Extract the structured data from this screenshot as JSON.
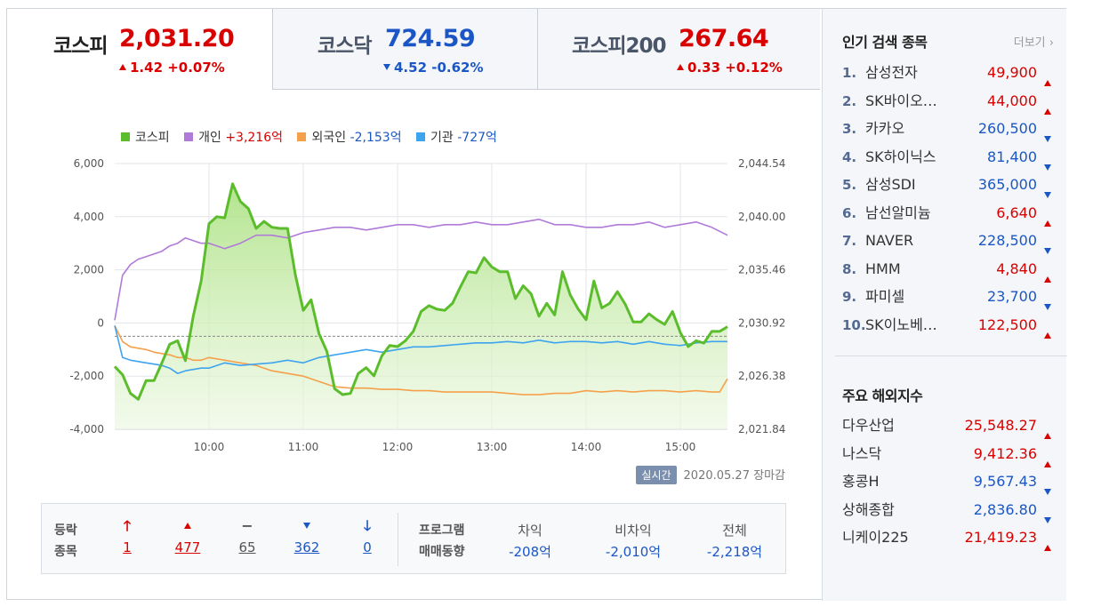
{
  "tabs": [
    {
      "name": "코스피",
      "value": "2,031.20",
      "change": "1.42 +0.07%",
      "dir": "up"
    },
    {
      "name": "코스닥",
      "value": "724.59",
      "change": "4.52 -0.62%",
      "dir": "down"
    },
    {
      "name": "코스피200",
      "value": "267.64",
      "change": "0.33 +0.12%",
      "dir": "up"
    }
  ],
  "legend": [
    {
      "label": "코스피",
      "value": "",
      "color": "#5bbd2b"
    },
    {
      "label": "개인",
      "value": "+3,216억",
      "color": "#b07ad9",
      "dir": "up"
    },
    {
      "label": "외국인",
      "value": "-2,153억",
      "color": "#f5a04a",
      "dir": "down"
    },
    {
      "label": "기관",
      "value": "-727억",
      "color": "#3ea4ef",
      "dir": "down"
    }
  ],
  "chart_data": {
    "type": "line",
    "x_ticks": [
      "10:00",
      "11:00",
      "12:00",
      "13:00",
      "14:00",
      "15:00"
    ],
    "y_left_ticks": [
      "6,000",
      "4,000",
      "2,000",
      "0",
      "-2,000",
      "-4,000"
    ],
    "y_left_range": [
      -4000,
      6000
    ],
    "y_right_ticks": [
      "2,044.54",
      "2,040.00",
      "2,035.46",
      "2,030.92",
      "2,026.38",
      "2,021.84"
    ],
    "y_right_range": [
      2021.84,
      2044.54
    ],
    "reference_line": 2029.78,
    "series": [
      {
        "name": "코스피",
        "axis": "right",
        "color": "#5bbd2b",
        "fill": true,
        "t": [
          "09:00",
          "09:05",
          "09:10",
          "09:15",
          "09:20",
          "09:25",
          "09:30",
          "09:35",
          "09:40",
          "09:45",
          "09:50",
          "09:55",
          "10:00",
          "10:05",
          "10:10",
          "10:15",
          "10:20",
          "10:25",
          "10:30",
          "10:35",
          "10:40",
          "10:45",
          "10:50",
          "10:55",
          "11:00",
          "11:05",
          "11:10",
          "11:15",
          "11:20",
          "11:25",
          "11:30",
          "11:35",
          "11:40",
          "11:45",
          "11:50",
          "11:55",
          "12:00",
          "12:05",
          "12:10",
          "12:15",
          "12:20",
          "12:25",
          "12:30",
          "12:35",
          "12:40",
          "12:45",
          "12:50",
          "12:55",
          "13:00",
          "13:05",
          "13:10",
          "13:15",
          "13:20",
          "13:25",
          "13:30",
          "13:35",
          "13:40",
          "13:45",
          "13:50",
          "13:55",
          "14:00",
          "14:05",
          "14:10",
          "14:15",
          "14:20",
          "14:25",
          "14:30",
          "14:35",
          "14:40",
          "14:45",
          "14:50",
          "14:55",
          "15:00",
          "15:05",
          "15:10",
          "15:15",
          "15:20",
          "15:25",
          "15:30"
        ],
        "y": [
          2027.2,
          2026.5,
          2024.9,
          2024.4,
          2026.0,
          2026.0,
          2027.5,
          2029.1,
          2029.4,
          2027.7,
          2031.5,
          2034.5,
          2039.4,
          2040.0,
          2039.9,
          2042.8,
          2041.3,
          2040.7,
          2039.0,
          2039.6,
          2039.1,
          2039.0,
          2039.0,
          2035.0,
          2032.0,
          2032.9,
          2030.0,
          2028.5,
          2025.3,
          2024.8,
          2024.9,
          2026.6,
          2027.1,
          2026.4,
          2028.1,
          2029.0,
          2028.9,
          2029.4,
          2030.2,
          2031.9,
          2032.4,
          2032.1,
          2032.0,
          2032.6,
          2034.0,
          2035.3,
          2035.2,
          2036.5,
          2035.7,
          2035.3,
          2035.3,
          2033.0,
          2034.1,
          2033.4,
          2031.5,
          2032.6,
          2031.6,
          2035.3,
          2033.3,
          2032.1,
          2031.2,
          2034.5,
          2032.2,
          2032.6,
          2033.6,
          2032.5,
          2031.0,
          2031.0,
          2031.7,
          2031.2,
          2030.8,
          2031.9,
          2030.1,
          2028.9,
          2029.4,
          2029.2,
          2030.2,
          2030.2,
          2030.6
        ]
      },
      {
        "name": "개인",
        "axis": "left",
        "color": "#b07ad9",
        "t": [
          "09:00",
          "09:05",
          "09:10",
          "09:15",
          "09:20",
          "09:25",
          "09:30",
          "09:35",
          "09:40",
          "09:45",
          "09:50",
          "09:55",
          "10:00",
          "10:10",
          "10:20",
          "10:30",
          "10:40",
          "10:50",
          "11:00",
          "11:10",
          "11:20",
          "11:30",
          "11:40",
          "11:50",
          "12:00",
          "12:10",
          "12:20",
          "12:30",
          "12:40",
          "12:50",
          "13:00",
          "13:10",
          "13:20",
          "13:30",
          "13:40",
          "13:50",
          "14:00",
          "14:10",
          "14:20",
          "14:30",
          "14:40",
          "14:50",
          "15:00",
          "15:10",
          "15:20",
          "15:30"
        ],
        "y": [
          100,
          1800,
          2200,
          2400,
          2500,
          2600,
          2700,
          2900,
          3000,
          3200,
          3100,
          3000,
          3000,
          2800,
          3000,
          3300,
          3300,
          3200,
          3400,
          3500,
          3600,
          3600,
          3500,
          3600,
          3700,
          3700,
          3600,
          3700,
          3700,
          3800,
          3700,
          3700,
          3800,
          3900,
          3700,
          3700,
          3600,
          3600,
          3700,
          3700,
          3800,
          3600,
          3700,
          3800,
          3600,
          3300
        ]
      },
      {
        "name": "외국인",
        "axis": "left",
        "color": "#f5a04a",
        "t": [
          "09:00",
          "09:05",
          "09:10",
          "09:15",
          "09:20",
          "09:25",
          "09:30",
          "09:35",
          "09:40",
          "09:45",
          "09:50",
          "09:55",
          "10:00",
          "10:10",
          "10:20",
          "10:30",
          "10:40",
          "10:50",
          "11:00",
          "11:10",
          "11:20",
          "11:30",
          "11:40",
          "11:50",
          "12:00",
          "12:10",
          "12:20",
          "12:30",
          "12:40",
          "12:50",
          "13:00",
          "13:10",
          "13:20",
          "13:30",
          "13:40",
          "13:50",
          "14:00",
          "14:10",
          "14:20",
          "14:30",
          "14:40",
          "14:50",
          "15:00",
          "15:10",
          "15:20",
          "15:25",
          "15:30"
        ],
        "y": [
          -100,
          -700,
          -900,
          -950,
          -1000,
          -1100,
          -1150,
          -1200,
          -1300,
          -1300,
          -1400,
          -1400,
          -1300,
          -1400,
          -1500,
          -1600,
          -1800,
          -1900,
          -2000,
          -2200,
          -2400,
          -2450,
          -2450,
          -2500,
          -2500,
          -2550,
          -2550,
          -2600,
          -2600,
          -2600,
          -2600,
          -2650,
          -2700,
          -2700,
          -2650,
          -2650,
          -2550,
          -2600,
          -2550,
          -2600,
          -2550,
          -2550,
          -2600,
          -2550,
          -2600,
          -2600,
          -2100
        ]
      },
      {
        "name": "기관",
        "axis": "left",
        "color": "#3ea4ef",
        "t": [
          "09:00",
          "09:05",
          "09:10",
          "09:15",
          "09:20",
          "09:25",
          "09:30",
          "09:35",
          "09:40",
          "09:45",
          "09:50",
          "09:55",
          "10:00",
          "10:10",
          "10:20",
          "10:30",
          "10:40",
          "10:50",
          "11:00",
          "11:10",
          "11:20",
          "11:30",
          "11:40",
          "11:50",
          "12:00",
          "12:10",
          "12:20",
          "12:30",
          "12:40",
          "12:50",
          "13:00",
          "13:10",
          "13:20",
          "13:30",
          "13:40",
          "13:50",
          "14:00",
          "14:10",
          "14:20",
          "14:30",
          "14:40",
          "14:50",
          "15:00",
          "15:10",
          "15:20",
          "15:30"
        ],
        "y": [
          -100,
          -1300,
          -1400,
          -1450,
          -1500,
          -1550,
          -1600,
          -1700,
          -1900,
          -1800,
          -1750,
          -1700,
          -1700,
          -1500,
          -1600,
          -1550,
          -1500,
          -1400,
          -1500,
          -1300,
          -1200,
          -1100,
          -1000,
          -1100,
          -1000,
          -900,
          -900,
          -850,
          -800,
          -750,
          -750,
          -700,
          -750,
          -650,
          -750,
          -700,
          -700,
          -750,
          -700,
          -800,
          -700,
          -800,
          -850,
          -750,
          -700,
          -700
        ]
      }
    ]
  },
  "status": {
    "realtime_label": "실시간",
    "date": "2020.05.27",
    "state": "장마감"
  },
  "breadth": {
    "head": [
      "등락",
      "종목"
    ],
    "items": [
      {
        "value": "1",
        "dir": "limit-up"
      },
      {
        "value": "477",
        "dir": "up"
      },
      {
        "value": "65",
        "dir": "flat"
      },
      {
        "value": "362",
        "dir": "down"
      },
      {
        "value": "0",
        "dir": "limit-down"
      }
    ]
  },
  "program": {
    "head": [
      "프로그램",
      "매매동향"
    ],
    "cols": [
      {
        "label": "차익",
        "value": "-208억"
      },
      {
        "label": "비차익",
        "value": "-2,010억"
      },
      {
        "label": "전체",
        "value": "-2,218억"
      }
    ]
  },
  "popular": {
    "title": "인기 검색 종목",
    "more": "더보기",
    "items": [
      {
        "rank": "1.",
        "name": "삼성전자",
        "price": "49,900",
        "dir": "up"
      },
      {
        "rank": "2.",
        "name": "SK바이오…",
        "price": "44,000",
        "dir": "up"
      },
      {
        "rank": "3.",
        "name": "카카오",
        "price": "260,500",
        "dir": "down"
      },
      {
        "rank": "4.",
        "name": "SK하이닉스",
        "price": "81,400",
        "dir": "down"
      },
      {
        "rank": "5.",
        "name": "삼성SDI",
        "price": "365,000",
        "dir": "down"
      },
      {
        "rank": "6.",
        "name": "남선알미늄",
        "price": "6,640",
        "dir": "up"
      },
      {
        "rank": "7.",
        "name": "NAVER",
        "price": "228,500",
        "dir": "down"
      },
      {
        "rank": "8.",
        "name": "HMM",
        "price": "4,840",
        "dir": "up"
      },
      {
        "rank": "9.",
        "name": "파미셀",
        "price": "23,700",
        "dir": "down"
      },
      {
        "rank": "10.",
        "name": "SK이노베…",
        "price": "122,500",
        "dir": "up"
      }
    ]
  },
  "world": {
    "title": "주요 해외지수",
    "items": [
      {
        "name": "다우산업",
        "price": "25,548.27",
        "dir": "up"
      },
      {
        "name": "나스닥",
        "price": "9,412.36",
        "dir": "up"
      },
      {
        "name": "홍콩H",
        "price": "9,567.43",
        "dir": "down"
      },
      {
        "name": "상해종합",
        "price": "2,836.80",
        "dir": "down"
      },
      {
        "name": "니케이225",
        "price": "21,419.23",
        "dir": "up"
      }
    ]
  }
}
